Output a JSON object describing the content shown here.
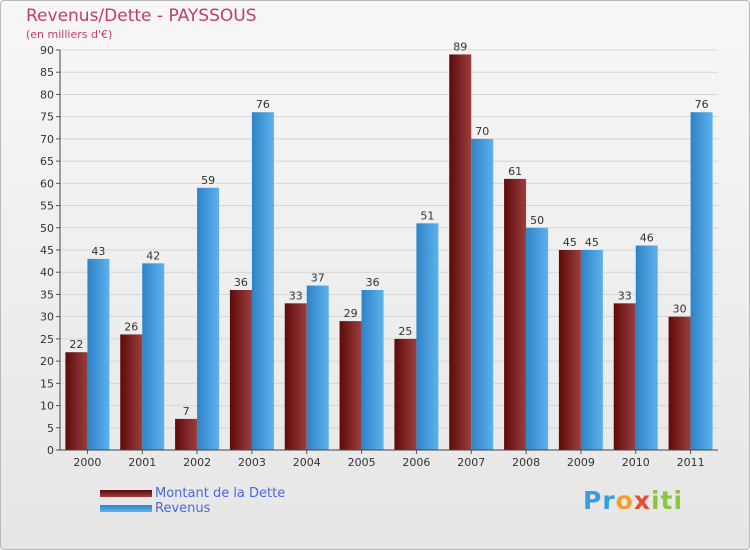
{
  "header": {
    "title": "Revenus/Dette - PAYSSOUS",
    "subtitle": "(en milliers d'€)"
  },
  "legend": {
    "debt_label": "Montant de la Dette",
    "revenue_label": "Revenus"
  },
  "logo": {
    "text": "Proxiti",
    "parts": [
      "Pr",
      "o",
      "x",
      "iti"
    ]
  },
  "colors": {
    "debt_dark": "#5e0a0a",
    "debt_light": "#9c3e3e",
    "revenue_dark": "#2e83c8",
    "revenue_light": "#5fb1ec",
    "title": "#c03c6c",
    "legend_text": "#4a66e0",
    "axis_text": "#333333"
  },
  "chart_data": {
    "type": "bar",
    "title": "Revenus/Dette - PAYSSOUS",
    "subtitle": "(en milliers d'€)",
    "categories": [
      "2000",
      "2001",
      "2002",
      "2003",
      "2004",
      "2005",
      "2006",
      "2007",
      "2008",
      "2009",
      "2010",
      "2011"
    ],
    "series": [
      {
        "name": "Montant de la Dette",
        "values": [
          22,
          26,
          7,
          36,
          33,
          29,
          25,
          89,
          61,
          45,
          33,
          30
        ]
      },
      {
        "name": "Revenus",
        "values": [
          43,
          42,
          59,
          76,
          37,
          36,
          51,
          70,
          50,
          45,
          46,
          76
        ]
      }
    ],
    "ylim": [
      0,
      90
    ],
    "ytick_step": 5,
    "yticks": [
      "0",
      "5",
      "10",
      "15",
      "20",
      "25",
      "30",
      "35",
      "40",
      "45",
      "50",
      "55",
      "60",
      "65",
      "70",
      "75",
      "80",
      "85",
      "90"
    ],
    "xlabel": "",
    "ylabel": "",
    "grid": true,
    "legend_position": "bottom-left"
  }
}
